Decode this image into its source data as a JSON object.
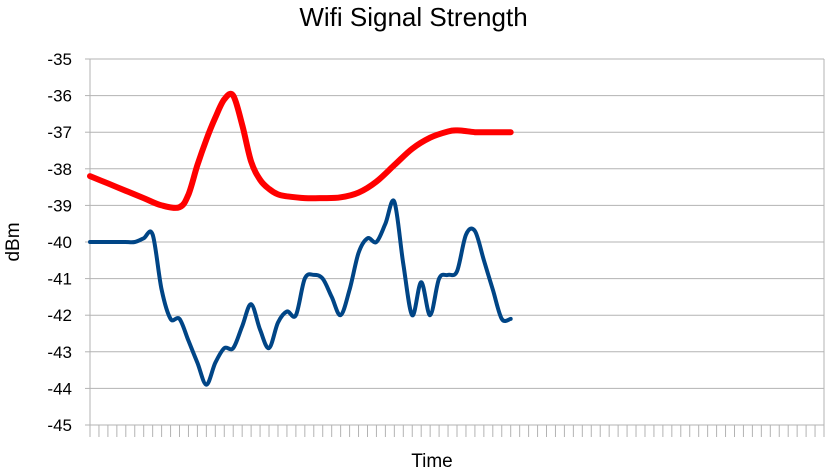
{
  "chart_data": {
    "type": "line",
    "title": "Wifi Signal Strength",
    "xlabel": "Time",
    "ylabel": "dBm",
    "ylim": [
      -45,
      -35
    ],
    "yticks": [
      "-35",
      "-36",
      "-37",
      "-38",
      "-39",
      "-40",
      "-41",
      "-42",
      "-43",
      "-44",
      "-45"
    ],
    "x_tick_count": 82,
    "grid": "horizontal",
    "legend": "none",
    "series": [
      {
        "color": "#ff0000",
        "x": [
          0,
          2,
          4,
          6,
          8,
          10,
          11,
          12,
          13,
          14,
          15,
          16,
          17,
          18,
          19,
          20,
          21,
          22,
          24,
          26,
          28,
          30,
          32,
          34,
          36,
          38,
          40,
          41,
          42,
          43,
          44,
          45,
          46,
          47
        ],
        "values": [
          -38.2,
          -38.4,
          -38.6,
          -38.8,
          -39.0,
          -39.05,
          -38.7,
          -37.9,
          -37.2,
          -36.6,
          -36.1,
          -36.0,
          -36.8,
          -37.8,
          -38.3,
          -38.55,
          -38.7,
          -38.75,
          -38.8,
          -38.8,
          -38.78,
          -38.65,
          -38.35,
          -37.9,
          -37.45,
          -37.15,
          -36.98,
          -36.95,
          -36.97,
          -37.0,
          -37.0,
          -37.0,
          -37.0,
          -37.0
        ]
      },
      {
        "color": "#004586",
        "x": [
          0,
          1,
          2,
          3,
          4,
          5,
          6,
          7,
          8,
          9,
          10,
          11,
          12,
          13,
          14,
          15,
          16,
          17,
          18,
          19,
          20,
          21,
          22,
          23,
          24,
          25,
          26,
          27,
          28,
          29,
          30,
          31,
          32,
          33,
          34,
          35,
          36,
          37,
          38,
          39,
          40,
          41,
          42,
          43,
          44,
          45,
          46,
          47
        ],
        "values": [
          -40.0,
          -40.0,
          -40.0,
          -40.0,
          -40.0,
          -40.0,
          -39.9,
          -39.8,
          -41.3,
          -42.1,
          -42.1,
          -42.7,
          -43.3,
          -43.9,
          -43.3,
          -42.9,
          -42.9,
          -42.3,
          -41.7,
          -42.4,
          -42.9,
          -42.2,
          -41.9,
          -42.0,
          -41.0,
          -40.9,
          -41.0,
          -41.5,
          -42.0,
          -41.3,
          -40.3,
          -39.9,
          -40.0,
          -39.5,
          -38.9,
          -40.6,
          -42.0,
          -41.1,
          -42.0,
          -41.0,
          -40.9,
          -40.8,
          -39.8,
          -39.7,
          -40.5,
          -41.3,
          -42.1,
          -42.1
        ]
      }
    ]
  }
}
